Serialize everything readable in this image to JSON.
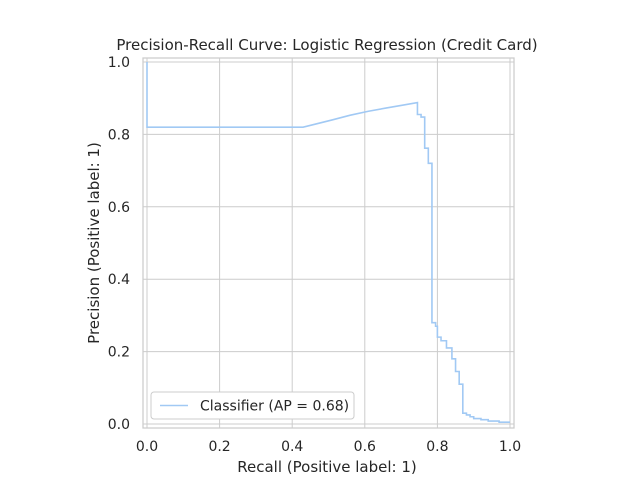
{
  "chart_data": {
    "type": "line",
    "title": "Precision-Recall Curve: Logistic Regression (Credit Card)",
    "xlabel": "Recall (Positive label: 1)",
    "ylabel": "Precision (Positive label: 1)",
    "xlim": [
      0.0,
      1.0
    ],
    "ylim": [
      0.0,
      1.0
    ],
    "xticks": [
      "0.0",
      "0.2",
      "0.4",
      "0.6",
      "0.8",
      "1.0"
    ],
    "yticks": [
      "0.0",
      "0.2",
      "0.4",
      "0.6",
      "0.8",
      "1.0"
    ],
    "grid": true,
    "legend_position": "lower-left",
    "series": [
      {
        "name": "Classifier (AP = 0.68)",
        "color": "#a1c9f4",
        "drawstyle": "steps",
        "points": [
          [
            0.0,
            1.0
          ],
          [
            0.0,
            0.82
          ],
          [
            0.43,
            0.82
          ],
          [
            0.47,
            0.83
          ],
          [
            0.51,
            0.84
          ],
          [
            0.56,
            0.853
          ],
          [
            0.61,
            0.864
          ],
          [
            0.66,
            0.873
          ],
          [
            0.7,
            0.88
          ],
          [
            0.745,
            0.888
          ],
          [
            0.745,
            0.855
          ],
          [
            0.755,
            0.855
          ],
          [
            0.755,
            0.848
          ],
          [
            0.765,
            0.848
          ],
          [
            0.765,
            0.762
          ],
          [
            0.775,
            0.762
          ],
          [
            0.775,
            0.72
          ],
          [
            0.785,
            0.72
          ],
          [
            0.785,
            0.28
          ],
          [
            0.795,
            0.28
          ],
          [
            0.795,
            0.27
          ],
          [
            0.8,
            0.27
          ],
          [
            0.8,
            0.24
          ],
          [
            0.81,
            0.24
          ],
          [
            0.81,
            0.23
          ],
          [
            0.825,
            0.23
          ],
          [
            0.825,
            0.21
          ],
          [
            0.84,
            0.21
          ],
          [
            0.84,
            0.18
          ],
          [
            0.85,
            0.18
          ],
          [
            0.85,
            0.145
          ],
          [
            0.86,
            0.145
          ],
          [
            0.86,
            0.11
          ],
          [
            0.87,
            0.11
          ],
          [
            0.87,
            0.03
          ],
          [
            0.88,
            0.03
          ],
          [
            0.88,
            0.025
          ],
          [
            0.89,
            0.025
          ],
          [
            0.89,
            0.02
          ],
          [
            0.9,
            0.02
          ],
          [
            0.9,
            0.015
          ],
          [
            0.92,
            0.015
          ],
          [
            0.92,
            0.012
          ],
          [
            0.94,
            0.012
          ],
          [
            0.94,
            0.008
          ],
          [
            0.97,
            0.008
          ],
          [
            0.97,
            0.005
          ],
          [
            1.0,
            0.005
          ]
        ]
      }
    ]
  },
  "colors": {
    "grid": "#cccccc",
    "axes_edge": "#cccccc",
    "text": "#262626",
    "series": "#a1c9f4"
  }
}
